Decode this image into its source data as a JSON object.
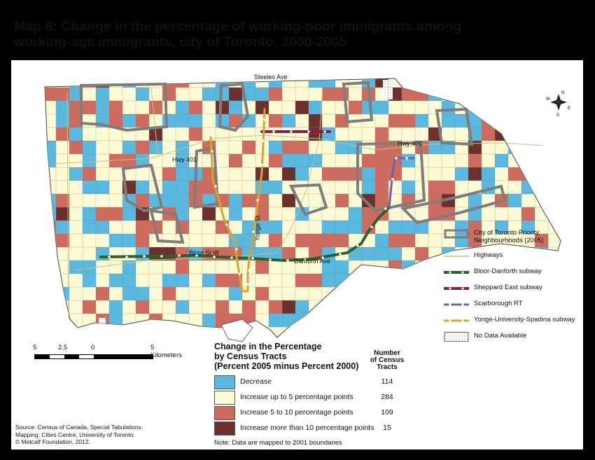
{
  "title": {
    "line1": "Map 8: Change in the percentage of working-poor immigrants among",
    "line2": "working-age immigrants, city of Toronto, 2000-2005"
  },
  "colors": {
    "decrease": "#59b8e0",
    "increase_small": "#fdfbd6",
    "increase_mid": "#cf6b5e",
    "increase_high": "#6e2f2f",
    "priority_outline": "#7d7d7d",
    "highway": "#e8e1a8",
    "bloor_danforth": "#2f5f2a",
    "sheppard": "#8a1d48",
    "scarborough_rt": "#6c64a8",
    "yonge_spadina": "#e0a12a",
    "lake": "#ffffff"
  },
  "map": {
    "labels": {
      "steeles": "Steeles Ave",
      "hwy401_west": "Hwy 401",
      "hwy401_east": "Hwy 401",
      "bloor": "Bloor St W",
      "danforth": "Danforth Ave",
      "yonge": "Yonge St"
    },
    "compass": {
      "n": "N",
      "s": "S",
      "e": "E",
      "w": "W"
    }
  },
  "legend_lines": [
    {
      "label": "City of Toronto Priority Neighbourhoods (2005)",
      "symbol": "priority"
    },
    {
      "label": "Highways",
      "symbol": "highway"
    },
    {
      "label": "Bloor-Danforth subway",
      "symbol": "bloor"
    },
    {
      "label": "Sheppard East subway",
      "symbol": "sheppard"
    },
    {
      "label": "Scarborough RT",
      "symbol": "srt"
    },
    {
      "label": "Yonge-University-Spadina subway",
      "symbol": "yonge"
    },
    {
      "label": "No Data Available",
      "symbol": "nodata"
    }
  ],
  "scale": {
    "labels": [
      "5",
      "2.5",
      "0",
      "5 Kilometers"
    ]
  },
  "classes": {
    "title_line1": "Change in the Percentage",
    "title_line2": "by Census Tracts",
    "title_line3": "(Percent 2005 minus Percent 2000)",
    "count_header_line1": "Number",
    "count_header_line2": "of Census",
    "count_header_line3": "Tracts",
    "items": [
      {
        "label": "Decrease",
        "count": "114",
        "color": "#59b8e0"
      },
      {
        "label": "Increase up to 5 percentage points",
        "count": "284",
        "color": "#fdfbd6"
      },
      {
        "label": "Increase 5 to 10 percentage points",
        "count": "109",
        "color": "#cf6b5e"
      },
      {
        "label": "Increase more than 10 percentage points",
        "count": "15",
        "color": "#6e2f2f"
      }
    ]
  },
  "note": "Note: Data are mapped to 2001 boundaries",
  "source": {
    "line1": "Source: Census of Canada, Special Tabulations.",
    "line2": "Mapping: Cities Centre, University of Toronto.",
    "line3": "© Metcalf Foundation, 2012."
  }
}
